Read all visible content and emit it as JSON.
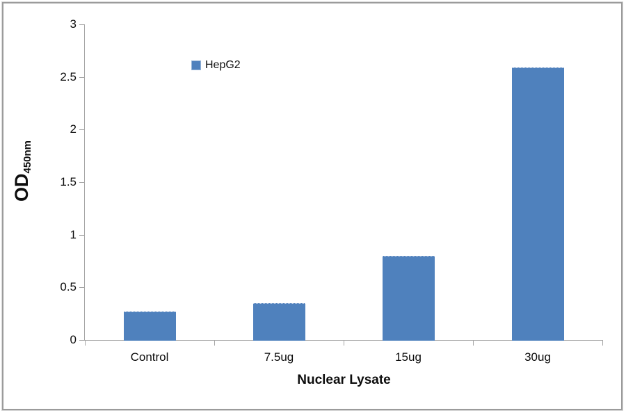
{
  "chart_data": {
    "type": "bar",
    "categories": [
      "Control",
      "7.5ug",
      "15ug",
      "30ug"
    ],
    "series": [
      {
        "name": "HepG2",
        "values": [
          0.27,
          0.35,
          0.8,
          2.59
        ]
      }
    ],
    "title": "",
    "xlabel": "Nuclear Lysate",
    "ylabel": "OD450nm",
    "ylabel_main": "OD",
    "ylabel_sub": "450nm",
    "ylim": [
      0,
      3
    ],
    "yticks": [
      0,
      0.5,
      1,
      1.5,
      2,
      2.5,
      3
    ],
    "grid": false,
    "legend_position": "inside-top-left",
    "bar_color": "#4F81BD",
    "legend_marker_border_color": "#95B3D7",
    "axis_color": "#A6A6A6",
    "text_color": "#0D0D0D",
    "frame_border_color": "#9B9B9B"
  }
}
